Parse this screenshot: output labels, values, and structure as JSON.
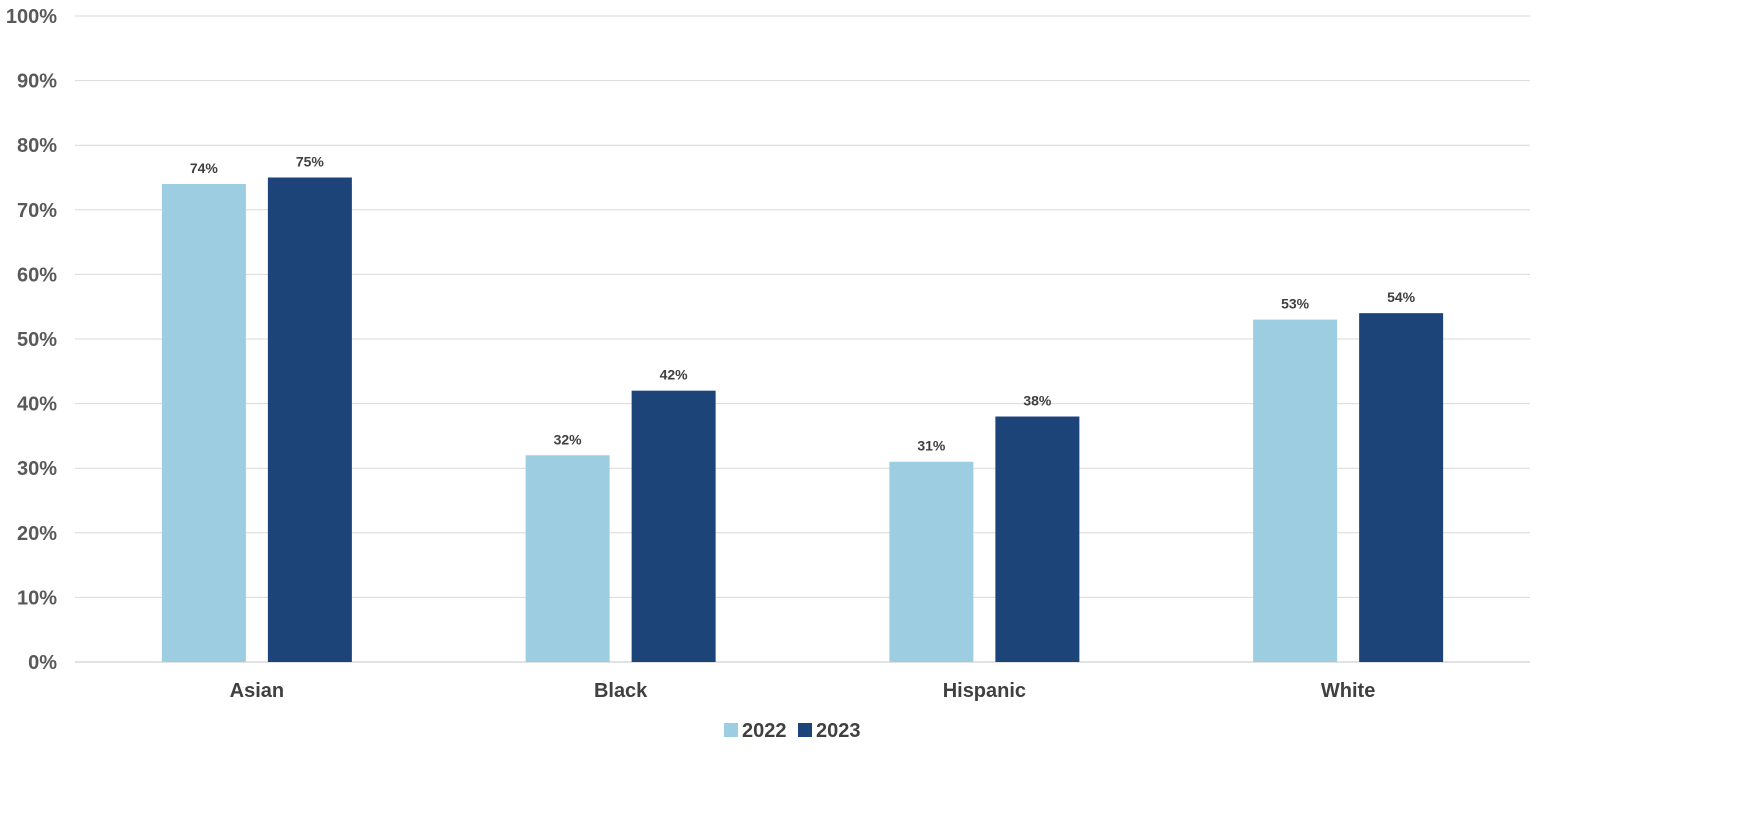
{
  "chart_data": {
    "type": "bar",
    "categories": [
      "Asian",
      "Black",
      "Hispanic",
      "White"
    ],
    "series": [
      {
        "name": "2022",
        "values": [
          74,
          32,
          31,
          53
        ],
        "labels": [
          "74%",
          "32%",
          "31%",
          "53%"
        ],
        "color": "#9ccde0"
      },
      {
        "name": "2023",
        "values": [
          75,
          42,
          38,
          54
        ],
        "labels": [
          "75%",
          "42%",
          "38%",
          "54%"
        ],
        "color": "#1c4478"
      }
    ],
    "ylim": [
      0,
      100
    ],
    "y_ticks": [
      0,
      10,
      20,
      30,
      40,
      50,
      60,
      70,
      80,
      90,
      100
    ],
    "y_tick_labels": [
      "0%",
      "10%",
      "20%",
      "30%",
      "40%",
      "50%",
      "60%",
      "70%",
      "80%",
      "90%",
      "100%"
    ],
    "title": "",
    "xlabel": "",
    "ylabel": "",
    "grid": true,
    "legend_position": "bottom-center"
  }
}
